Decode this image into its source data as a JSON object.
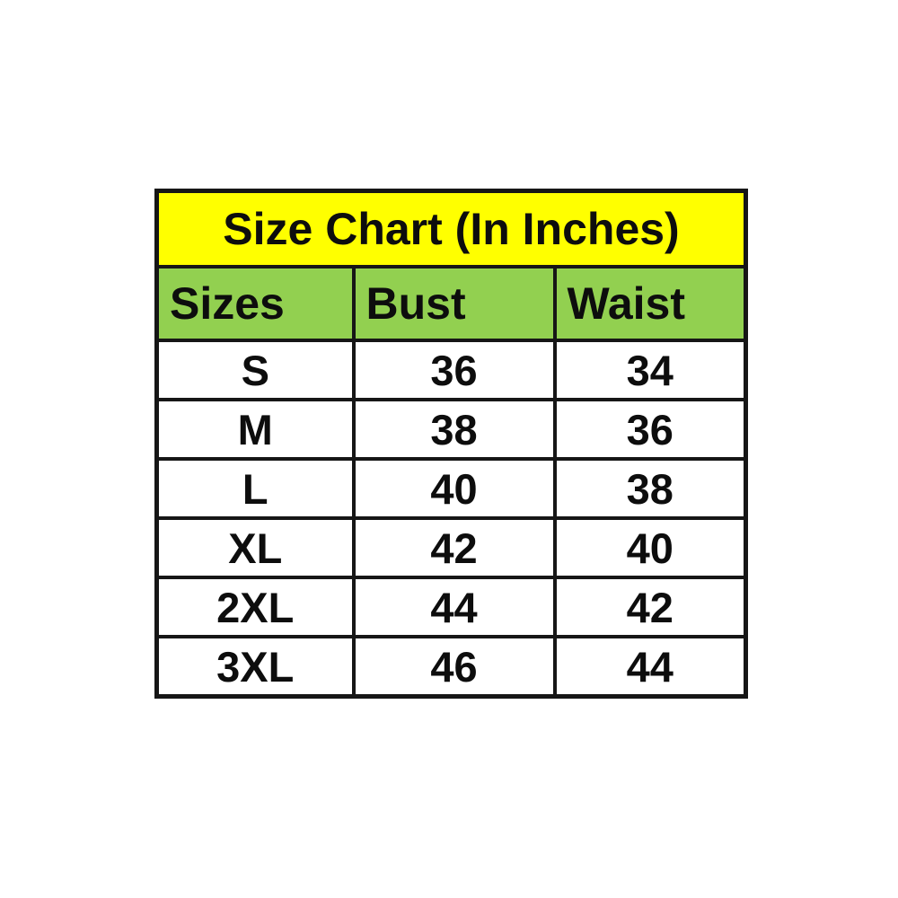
{
  "page": {
    "background": "#ffffff"
  },
  "chart_data": {
    "type": "table",
    "title": "Size Chart (In Inches)",
    "units": "inches",
    "columns": [
      "Sizes",
      "Bust",
      "Waist"
    ],
    "rows": [
      {
        "size": "S",
        "bust": "36",
        "waist": "34"
      },
      {
        "size": "M",
        "bust": "38",
        "waist": "36"
      },
      {
        "size": "L",
        "bust": "40",
        "waist": "38"
      },
      {
        "size": "XL",
        "bust": "42",
        "waist": "40"
      },
      {
        "size": "2XL",
        "bust": "44",
        "waist": "42"
      },
      {
        "size": "3XL",
        "bust": "46",
        "waist": "44"
      }
    ],
    "colors": {
      "title_bg": "#ffff00",
      "header_bg": "#92d050",
      "row_bg": "#ffffff",
      "border": "#161616",
      "text": "#0d0d0d"
    }
  }
}
